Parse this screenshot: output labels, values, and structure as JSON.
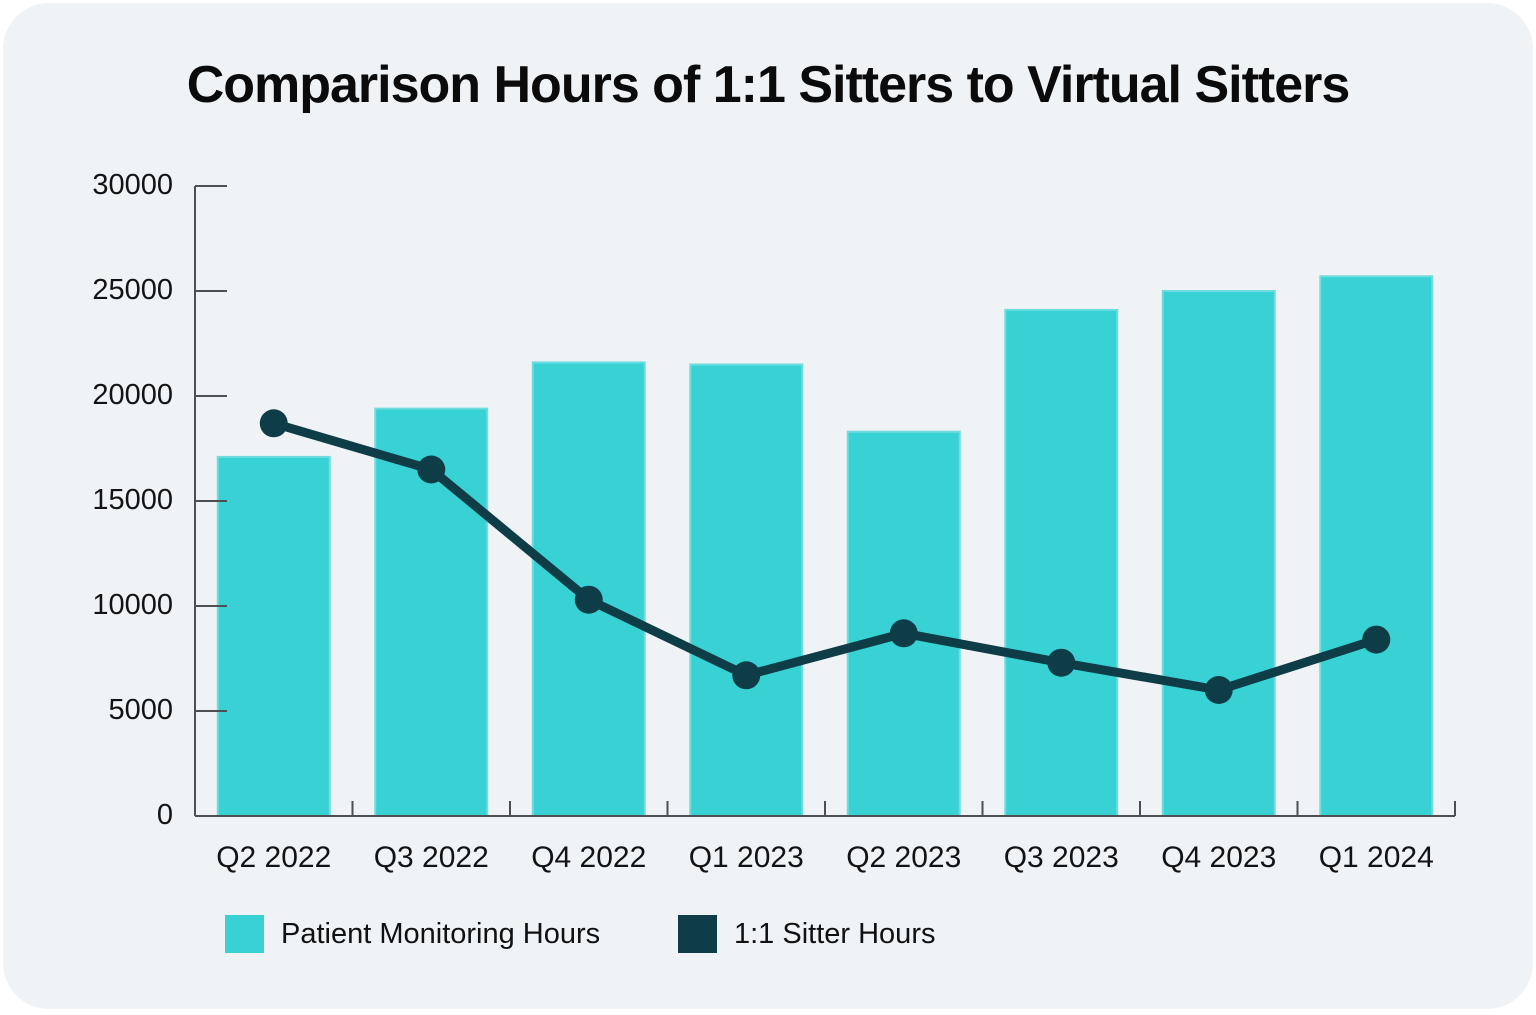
{
  "chart_data": {
    "type": "bar+line",
    "title": "Comparison Hours of 1:1 Sitters to Virtual Sitters",
    "categories": [
      "Q2 2022",
      "Q3 2022",
      "Q4 2022",
      "Q1 2023",
      "Q2 2023",
      "Q3 2023",
      "Q4 2023",
      "Q1 2024"
    ],
    "series": [
      {
        "name": "Patient Monitoring Hours",
        "type": "bar",
        "color": "#38D2D4",
        "values": [
          17100,
          19400,
          21600,
          21500,
          18300,
          24100,
          25000,
          25700
        ]
      },
      {
        "name": "1:1 Sitter Hours",
        "type": "line",
        "color": "#0E3D47",
        "values": [
          18700,
          16500,
          10300,
          6700,
          8700,
          7300,
          6000,
          8400
        ]
      }
    ],
    "y_axis": {
      "min": 0,
      "max": 30000,
      "tick_step": 5000,
      "tick_labels": [
        "0",
        "5000",
        "10000",
        "15000",
        "20000",
        "25000",
        "30000"
      ]
    },
    "xlabel": "",
    "ylabel": "",
    "grid": false,
    "legend_position": "bottom-left"
  },
  "colors": {
    "card_background": "#F0F3F6",
    "page_background": "#FFFFFF",
    "bar_fill": "#38D2D4",
    "bar_edge": "#6FDCDF",
    "line_stroke": "#0E3D47",
    "axis_stroke": "#4D4F52",
    "text": "#0B0B0C"
  }
}
